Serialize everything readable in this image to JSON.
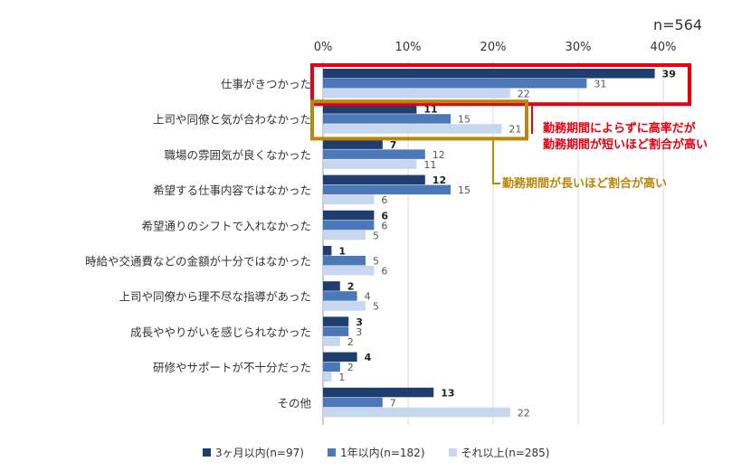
{
  "sample_size": "n=564",
  "colors": {
    "series1": "#1f3d6e",
    "series2": "#4a78b8",
    "series3": "#c6d7ef",
    "red_highlight": "#e60012",
    "gold_highlight": "#b8860b"
  },
  "annotations": {
    "red_line1": "勤務期間によらずに高率だが",
    "red_line2": "勤務期間が短いほど割合が高い",
    "gold_text": "勤務期間が長いほど割合が高い"
  },
  "chart_data": {
    "type": "bar",
    "orientation": "horizontal",
    "categories": [
      "仕事がきつかった",
      "上司や同僚と気が合わなかった",
      "職場の雰囲気が良くなかった",
      "希望する仕事内容ではなかった",
      "希望通りのシフトで入れなかった",
      "時給や交通費などの金額が十分ではなかった",
      "上司や同僚から理不尽な指導があった",
      "成長ややりがいを感じられなかった",
      "研修やサポートが不十分だった",
      "その他"
    ],
    "series": [
      {
        "name": "3ヶ月以内(n=97)",
        "values": [
          39,
          11,
          7,
          12,
          6,
          1,
          2,
          3,
          4,
          13
        ]
      },
      {
        "name": "1年以内(n=182)",
        "values": [
          31,
          15,
          12,
          15,
          6,
          5,
          4,
          3,
          2,
          7
        ]
      },
      {
        "name": "それ以上(n=285)",
        "values": [
          22,
          21,
          11,
          6,
          5,
          6,
          5,
          2,
          1,
          22
        ]
      }
    ],
    "xlim": [
      0,
      40
    ],
    "xticks": [
      "0%",
      "10%",
      "20%",
      "30%",
      "40%"
    ],
    "legend_position": "bottom",
    "grid": true
  }
}
